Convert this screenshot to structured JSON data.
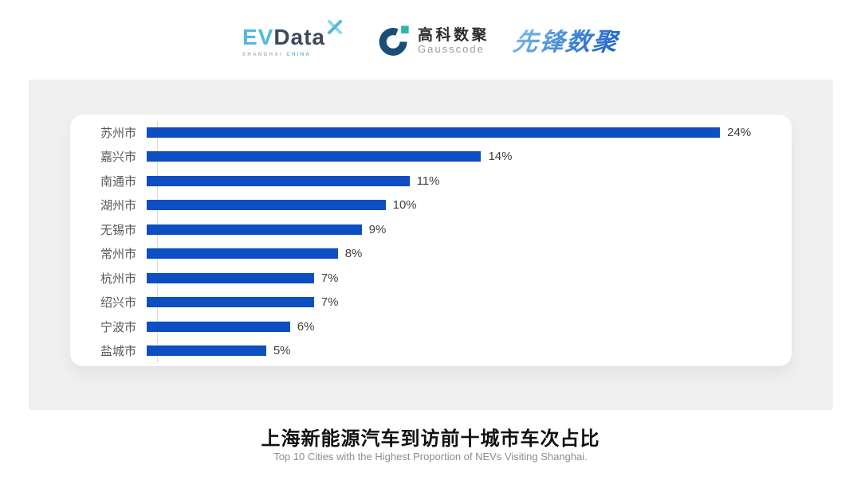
{
  "header": {
    "logos": {
      "evdata": {
        "ev": "EV",
        "data": "Data",
        "sub_left": "SHANGHAI",
        "sub_right": "CHINA",
        "mark": "x-pinwheel-icon",
        "colors": {
          "ev": "#55b8dd",
          "data": "#3d4a5b",
          "sub_left": "#a9b1b9",
          "sub_right": "#55b8dd"
        }
      },
      "gausscode": {
        "cn": "高科数聚",
        "en": "Gausscode",
        "mark": "g-ring-icon",
        "colors": {
          "ring": "#1b4e74",
          "square": "#2bb5ad"
        }
      },
      "xianfeng": {
        "text": "先锋数聚",
        "colors": {
          "from": "#7cc0ee",
          "to": "#1f62c4"
        }
      }
    }
  },
  "chart_data": {
    "type": "bar",
    "orientation": "horizontal",
    "title": "上海新能源汽车到访前十城市车次占比",
    "subtitle": "Top 10 Cities with the Highest Proportion of  NEVs Visiting Shanghai.",
    "categories": [
      "苏州市",
      "嘉兴市",
      "南通市",
      "湖州市",
      "无锡市",
      "常州市",
      "杭州市",
      "绍兴市",
      "宁波市",
      "盐城市"
    ],
    "values": [
      24,
      14,
      11,
      10,
      9,
      8,
      7,
      7,
      6,
      5
    ],
    "value_labels": [
      "24%",
      "14%",
      "11%",
      "10%",
      "9%",
      "8%",
      "7%",
      "7%",
      "6%",
      "5%"
    ],
    "unit": "%",
    "xmax": 27,
    "bar_color": "#0d4ec2",
    "label_color": "#595959",
    "value_color": "#3f3f3f",
    "axis_line_color": "#dcdcdc",
    "grid": false,
    "legend": "none"
  }
}
